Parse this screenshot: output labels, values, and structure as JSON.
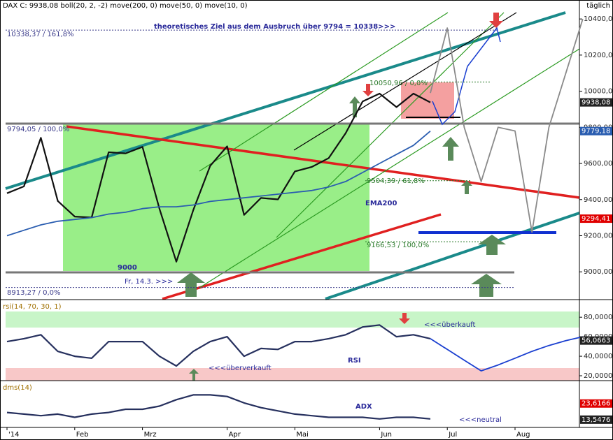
{
  "chart_data": [
    {
      "type": "line",
      "title": "DAX C: 9938,08  boll(20, 2, -2)  move(200, 0)  move(50, 0)  move(10, 0)",
      "categories": [
        "'14",
        null,
        null,
        null,
        "Feb",
        null,
        null,
        null,
        "Mrz",
        null,
        null,
        null,
        null,
        "Apr",
        null,
        null,
        null,
        "Mai",
        null,
        null,
        null,
        null,
        "Jun",
        null,
        null,
        null,
        "Jul",
        null,
        null,
        null,
        "Aug",
        null,
        null,
        null,
        null
      ],
      "series": [
        {
          "color": "#111111",
          "values": [
            9435,
            9473,
            9742,
            9392,
            9306,
            9301,
            9662,
            9656,
            9692,
            9350,
            9056,
            9342,
            9587,
            9695,
            9315,
            9409,
            9401,
            9556,
            9581,
            9630,
            9768,
            9943,
            9987,
            9912,
            9987,
            9938,
            null,
            null,
            null,
            null,
            null,
            null,
            null,
            null,
            null
          ]
        },
        {
          "color": "#2a5db0",
          "values": [
            9200,
            9230,
            9260,
            9280,
            9290,
            9300,
            9320,
            9330,
            9350,
            9360,
            9360,
            9370,
            9390,
            9400,
            9410,
            9420,
            9430,
            9440,
            9450,
            9470,
            9500,
            9550,
            9600,
            9650,
            9700,
            9779.18,
            null,
            null,
            null,
            null,
            null,
            null,
            null,
            null,
            null
          ]
        },
        {
          "color": "#8a8a8a",
          "values": [
            null,
            null,
            null,
            null,
            null,
            null,
            null,
            null,
            null,
            null,
            null,
            null,
            null,
            null,
            null,
            null,
            null,
            null,
            null,
            null,
            null,
            null,
            null,
            null,
            null,
            9990,
            10350,
            9800,
            9500,
            9800,
            9780,
            9220,
            9800,
            10100,
            10400
          ]
        }
      ],
      "ylim": [
        8850,
        10505
      ],
      "yticks": [
        {
          "value": 9000,
          "label": "9000,00"
        },
        {
          "value": 9200,
          "label": "9200,00"
        },
        {
          "value": 9400,
          "label": "9400,00"
        },
        {
          "value": 9600,
          "label": "9600,00"
        },
        {
          "value": 9800,
          "label": "9800,00"
        },
        {
          "value": 10000,
          "label": "10000,00"
        },
        {
          "value": 10200,
          "label": "10200,00"
        },
        {
          "value": 10400,
          "label": "10400,00"
        }
      ],
      "levels": [
        {
          "value": 10338.37,
          "label": "10338,37 / 161,8%"
        },
        {
          "value": 9794.05,
          "label": "9794,05 / 100,0%"
        },
        {
          "value": 10050.96,
          "label": "10050,96 / 0,0%"
        },
        {
          "value": 9504.39,
          "label": "9504,39 / 61,8%"
        },
        {
          "value": 9166.53,
          "label": "9166,53 / 100,0%"
        },
        {
          "value": 8913.27,
          "label": "8913,27 / 0,0%"
        }
      ],
      "price_labels": [
        {
          "value": 9938.08,
          "label": "9938,08",
          "color": "#222222"
        },
        {
          "value": 9779.18,
          "label": "9779,18",
          "color": "#2a5db0"
        },
        {
          "value": 9294.41,
          "label": "9294,41",
          "color": "#e00000"
        }
      ],
      "notes": [
        "theoretisches Ziel aus dem Ausbruch über 9794 = 10338>>>",
        "EMA200",
        "9000",
        "Fr, 14.3. >>>",
        "täglich"
      ]
    },
    {
      "type": "line",
      "title": "rsi(14, 70, 30, 1)",
      "series": [
        {
          "color": "#26305e",
          "values": [
            55,
            58,
            62,
            45,
            40,
            38,
            55,
            55,
            55,
            40,
            30,
            45,
            55,
            60,
            40,
            48,
            47,
            55,
            55,
            58,
            62,
            70,
            72,
            60,
            62,
            58,
            null,
            null,
            null,
            null,
            null,
            null,
            null,
            null,
            null
          ]
        },
        {
          "color": "#1a3fd0",
          "values": [
            null,
            null,
            null,
            null,
            null,
            null,
            null,
            null,
            null,
            null,
            null,
            null,
            null,
            null,
            null,
            null,
            null,
            null,
            null,
            null,
            null,
            null,
            null,
            null,
            null,
            58,
            47,
            36,
            25,
            31,
            38,
            45,
            51,
            56,
            60
          ]
        }
      ],
      "ylim": [
        15,
        96.6
      ],
      "yticks": [
        {
          "value": 20,
          "label": "20,0000"
        },
        {
          "value": 40,
          "label": "40,0000"
        },
        {
          "value": 60,
          "label": "60,0000"
        },
        {
          "value": 80,
          "label": "80,0000"
        }
      ],
      "price_labels": [
        {
          "value": 56.0663,
          "label": "56,0663",
          "color": "#222222"
        }
      ],
      "notes": [
        "<<<überkauft",
        "<<<überverkauft",
        "RSI"
      ]
    },
    {
      "type": "line",
      "title": "dms(14)",
      "series": [
        {
          "color": "#26305e",
          "values": [
            18,
            17,
            16,
            17,
            15,
            17,
            18,
            20,
            20,
            22,
            26,
            29,
            29,
            28,
            24,
            21,
            19,
            17,
            16,
            15,
            15,
            15,
            14,
            15,
            15,
            14,
            null,
            null,
            null,
            null,
            null,
            null,
            null,
            null,
            null
          ]
        }
      ],
      "ylim": [
        8.7,
        37
      ],
      "price_labels": [
        {
          "value": 23.6166,
          "label": "23,6166",
          "color": "#e00000"
        },
        {
          "value": 13.5476,
          "label": "13,5476",
          "color": "#222222"
        }
      ],
      "notes": [
        "ADX",
        "<<<neutral"
      ]
    }
  ]
}
